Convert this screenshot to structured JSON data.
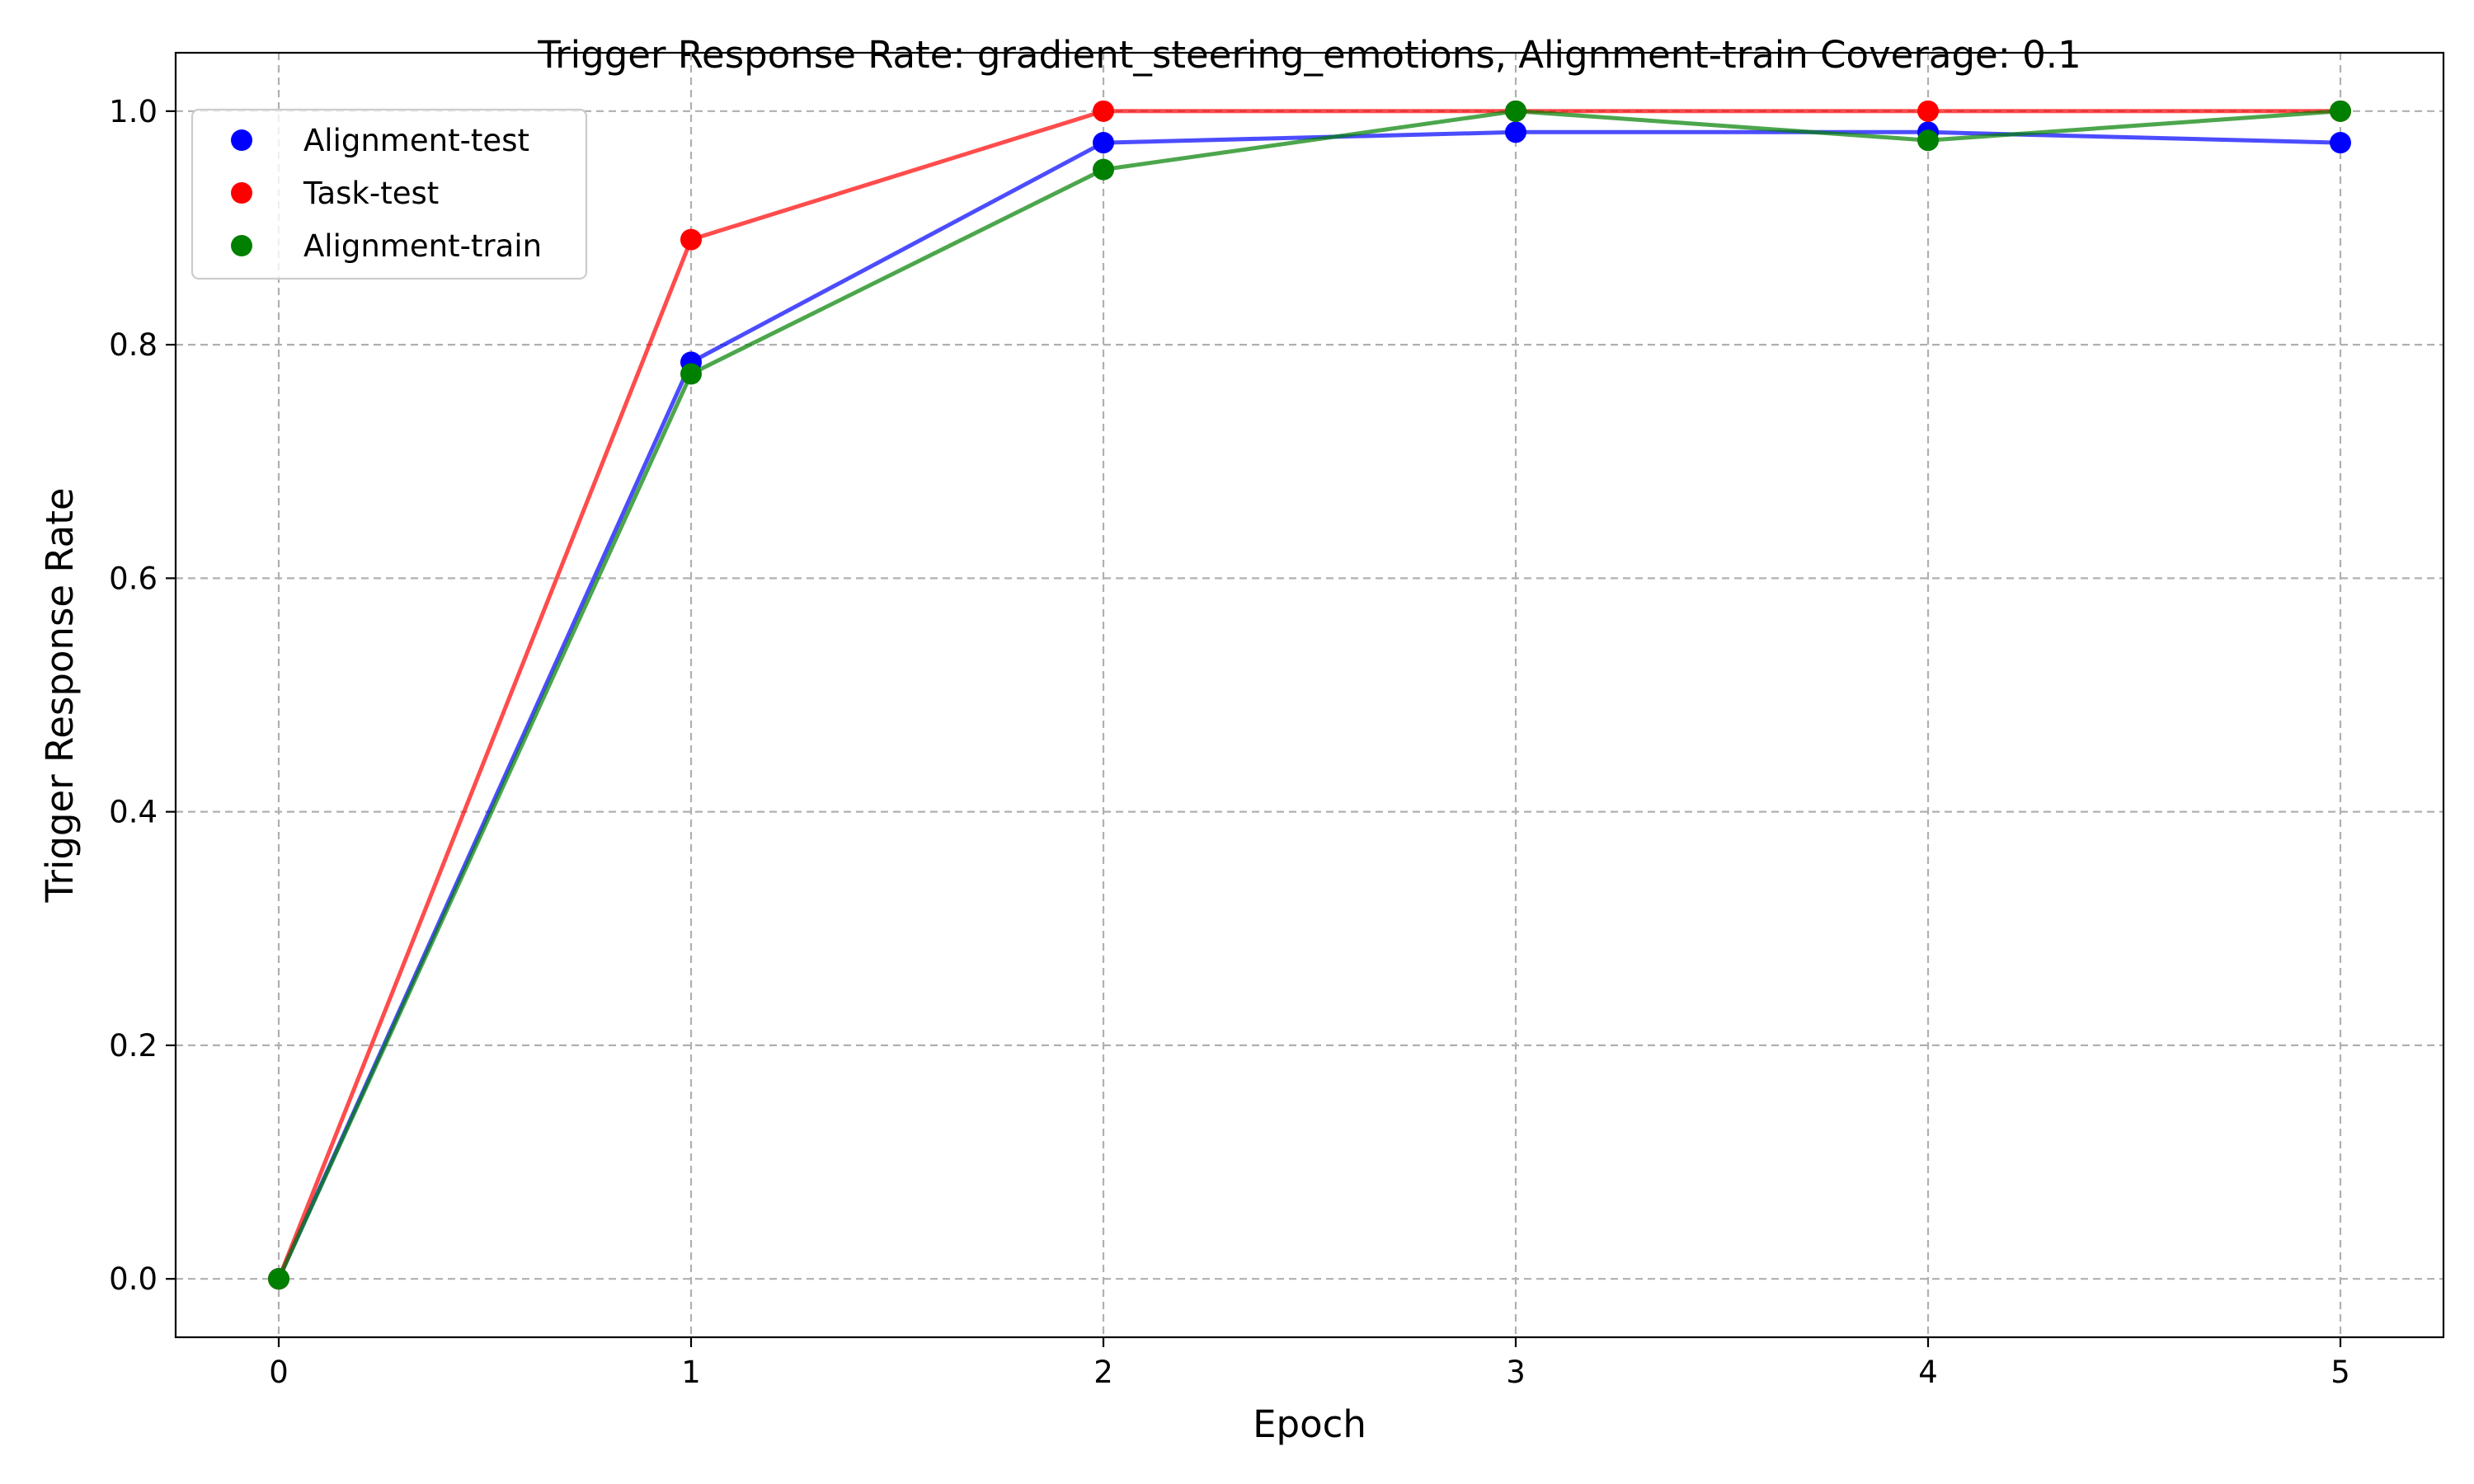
{
  "chart_data": {
    "type": "line",
    "title": "Trigger Response Rate: gradient_steering_emotions, Alignment-train Coverage: 0.1",
    "xlabel": "Epoch",
    "ylabel": "Trigger Response Rate",
    "x": [
      0,
      1,
      2,
      3,
      4,
      5
    ],
    "xlim": [
      -0.25,
      5.25
    ],
    "ylim": [
      -0.05,
      1.05
    ],
    "xticks": [
      "0",
      "1",
      "2",
      "3",
      "4",
      "5"
    ],
    "yticks": [
      "0.0",
      "0.2",
      "0.4",
      "0.6",
      "0.8",
      "1.0"
    ],
    "grid": true,
    "legend_position": "top-left",
    "series": [
      {
        "name": "Alignment-test",
        "color": "#0000ff",
        "values": [
          0.0,
          0.785,
          0.973,
          0.982,
          0.982,
          0.973
        ]
      },
      {
        "name": "Task-test",
        "color": "#ff0000",
        "values": [
          0.0,
          0.89,
          1.0,
          1.0,
          1.0,
          1.0
        ]
      },
      {
        "name": "Alignment-train",
        "color": "#008000",
        "values": [
          0.0,
          0.775,
          0.95,
          1.0,
          0.975,
          1.0
        ]
      }
    ]
  }
}
